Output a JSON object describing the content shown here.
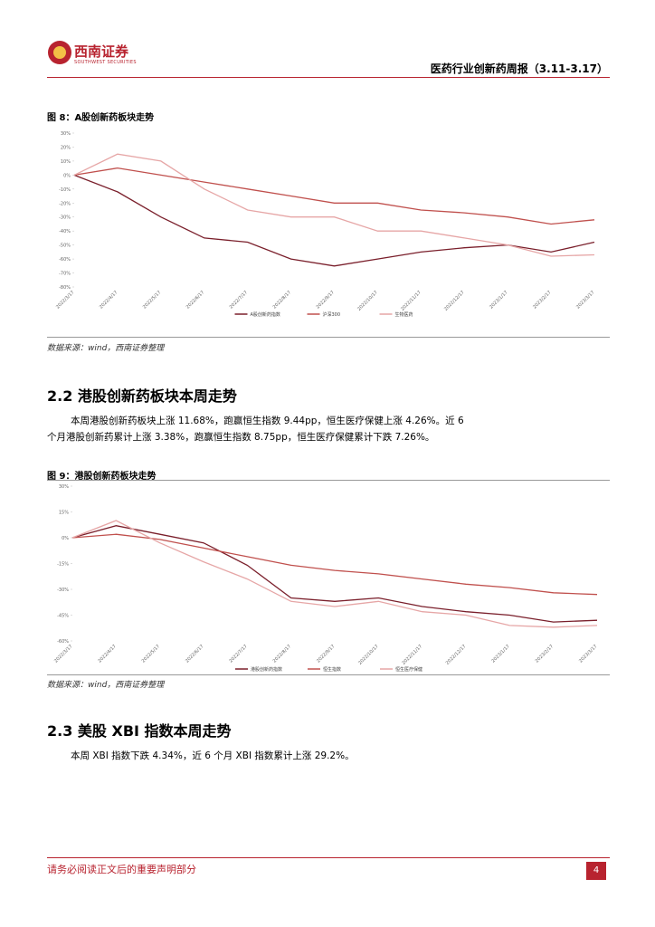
{
  "header": {
    "logo_cn": "西南证券",
    "logo_en": "SOUTHWEST SECURITIES",
    "title": "医药行业创新药周报（3.11-3.17）"
  },
  "figures": [
    {
      "caption": "图 8：A股创新药板块走势",
      "source": "数据来源：wind，西南证券整理",
      "chart_data": {
        "type": "line",
        "categories": [
          "2022/3/17",
          "2022/4/17",
          "2022/5/17",
          "2022/6/17",
          "2022/7/17",
          "2022/8/17",
          "2022/9/17",
          "2022/10/17",
          "2022/11/17",
          "2022/12/17",
          "2023/1/17",
          "2023/2/17",
          "2023/3/17"
        ],
        "series": [
          {
            "name": "A股创新药指数",
            "color": "#7a1f2b",
            "values": [
              0,
              -12,
              -30,
              -45,
              -48,
              -60,
              -65,
              -60,
              -55,
              -52,
              -50,
              -55,
              -48
            ]
          },
          {
            "name": "沪深300",
            "color": "#c0504d",
            "values": [
              0,
              5,
              0,
              -5,
              -10,
              -15,
              -20,
              -20,
              -25,
              -27,
              -30,
              -35,
              -32
            ]
          },
          {
            "name": "生物医药",
            "color": "#e6a6a6",
            "values": [
              0,
              15,
              10,
              -10,
              -25,
              -30,
              -30,
              -40,
              -40,
              -45,
              -50,
              -58,
              -57
            ]
          }
        ],
        "ylim": [
          -80,
          30
        ],
        "yticks": [
          {
            "value": 30,
            "label": "30%"
          },
          {
            "value": 20,
            "label": "20%"
          },
          {
            "value": 10,
            "label": "10%"
          },
          {
            "value": 0,
            "label": "0%"
          },
          {
            "value": -10,
            "label": "-10%"
          },
          {
            "value": -20,
            "label": "-20%"
          },
          {
            "value": -30,
            "label": "-30%"
          },
          {
            "value": -40,
            "label": "-40%"
          },
          {
            "value": -50,
            "label": "-50%"
          },
          {
            "value": -60,
            "label": "-60%"
          },
          {
            "value": -70,
            "label": "-70%"
          },
          {
            "value": -80,
            "label": "-80%"
          }
        ]
      }
    },
    {
      "caption": "图 9：港股创新药板块走势",
      "source": "数据来源：wind，西南证券整理",
      "chart_data": {
        "type": "line",
        "categories": [
          "2022/3/17",
          "2022/4/17",
          "2022/5/17",
          "2022/6/17",
          "2022/7/17",
          "2022/8/17",
          "2022/9/17",
          "2022/10/17",
          "2022/11/17",
          "2022/12/17",
          "2023/1/17",
          "2023/2/17",
          "2023/3/17"
        ],
        "series": [
          {
            "name": "港股创新药指数",
            "color": "#7a1f2b",
            "values": [
              0,
              7,
              2,
              -3,
              -16,
              -35,
              -37,
              -35,
              -40,
              -43,
              -45,
              -49,
              -48
            ]
          },
          {
            "name": "恒生指数",
            "color": "#c0504d",
            "values": [
              0,
              2,
              -1,
              -6,
              -11,
              -16,
              -19,
              -21,
              -24,
              -27,
              -29,
              -32,
              -33
            ]
          },
          {
            "name": "恒生医疗保健",
            "color": "#e6a6a6",
            "values": [
              0,
              10,
              -3,
              -14,
              -24,
              -37,
              -40,
              -37,
              -43,
              -45,
              -51,
              -52,
              -51
            ]
          }
        ],
        "ylim": [
          -60,
          30
        ],
        "yticks": [
          {
            "value": 30,
            "label": "30%"
          },
          {
            "value": 15,
            "label": "15%"
          },
          {
            "value": 0,
            "label": "0%"
          },
          {
            "value": -15,
            "label": "-15%"
          },
          {
            "value": -30,
            "label": "-30%"
          },
          {
            "value": -45,
            "label": "-45%"
          },
          {
            "value": -60,
            "label": "-60%"
          }
        ]
      }
    }
  ],
  "sections": [
    {
      "heading": "2.2 港股创新药板块本周走势",
      "paragraph": "本周港股创新药板块上涨 11.68%，跑赢恒生指数 9.44pp，恒生医疗保健上涨 4.26%。近 6 个月港股创新药累计上涨 3.38%，跑赢恒生指数 8.75pp，恒生医疗保健累计下跌 7.26%。"
    },
    {
      "heading": "2.3 美股 XBI 指数本周走势",
      "paragraph": "本周 XBI 指数下跌 4.34%，近 6 个月 XBI 指数累计上涨 29.2%。"
    }
  ],
  "footer": {
    "note": "请务必阅读正文后的重要声明部分",
    "page": 4
  }
}
